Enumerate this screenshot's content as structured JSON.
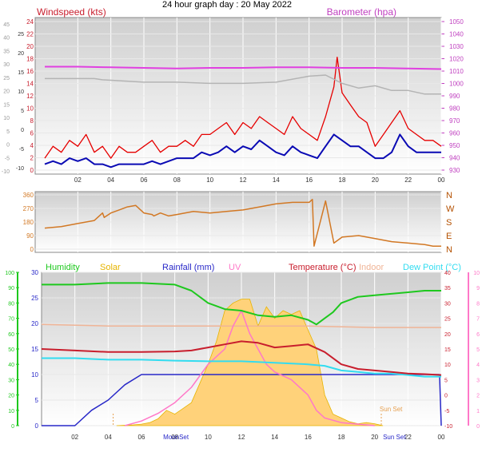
{
  "title": "24 hour graph day : 20 May 2022",
  "x_ticks": [
    "02",
    "04",
    "06",
    "08",
    "10",
    "12",
    "14",
    "16",
    "18",
    "20",
    "22",
    "00"
  ],
  "colors": {
    "wind": "#e60000",
    "gust_avg": "#0a0ab4",
    "baro": "#e040e0",
    "temp_trend": "#b4b4b4",
    "dir": "#d27824",
    "humidity": "#1ec81e",
    "solar": "#e6b400",
    "rain": "#2828c8",
    "uv": "#ff78c8",
    "temp": "#c81e2d",
    "indoor": "#f0b496",
    "dew": "#32dcf0",
    "solar_fill": "#ffd27a"
  },
  "chart_data": [
    {
      "type": "line",
      "name": "wind",
      "title": "Windspeed (kts)",
      "right_title": "Barometer (hpa)",
      "y_left_ticks": [
        "24",
        "22",
        "20",
        "18",
        "16",
        "14",
        "12",
        "10",
        "8",
        "6",
        "4",
        "2",
        "0"
      ],
      "y_left_inner_ticks": [
        "24",
        "22",
        "20",
        "18",
        "16",
        "14",
        "12",
        "10",
        "8",
        "6",
        "4",
        "2",
        "0"
      ],
      "y_far_left_ticks": [
        "45",
        "40",
        "35",
        "30",
        "25",
        "20",
        "15",
        "10",
        "5",
        "0",
        "-5",
        "-10"
      ],
      "y_mid_ticks": [
        "25",
        "20",
        "15",
        "10",
        "5",
        "0",
        "-5",
        "-10"
      ],
      "y_right_ticks": [
        "1050",
        "1040",
        "1030",
        "1020",
        "1010",
        "1000",
        "990",
        "980",
        "970",
        "960",
        "950",
        "940",
        "930"
      ],
      "ylim": [
        0,
        25
      ],
      "baro_lim": [
        925,
        1050
      ],
      "x_hours": [
        0,
        24
      ],
      "series": [
        {
          "key": "windspeed",
          "x": [
            0,
            0.5,
            1,
            1.5,
            2,
            2.5,
            3,
            3.5,
            4,
            4.5,
            5,
            5.5,
            6,
            6.5,
            7,
            7.5,
            8,
            8.5,
            9,
            9.5,
            10,
            10.5,
            11,
            11.5,
            12,
            12.5,
            13,
            13.5,
            14,
            14.5,
            15,
            15.5,
            16,
            16.5,
            17,
            17.5,
            17.7,
            18,
            18.5,
            19,
            19.5,
            20,
            20.5,
            21,
            21.5,
            22,
            22.5,
            23,
            23.5,
            24
          ],
          "y": [
            2,
            4,
            3,
            5,
            4,
            6,
            3,
            4,
            2,
            4,
            3,
            3,
            4,
            5,
            3,
            4,
            4,
            5,
            4,
            6,
            6,
            7,
            8,
            6,
            8,
            7,
            9,
            8,
            7,
            6,
            9,
            7,
            6,
            5,
            9,
            14,
            19,
            13,
            11,
            9,
            8,
            4,
            6,
            8,
            10,
            7,
            6,
            5,
            5,
            4
          ]
        },
        {
          "key": "average",
          "x": [
            0,
            0.5,
            1,
            1.5,
            2,
            2.5,
            3,
            3.5,
            4,
            4.5,
            5,
            5.5,
            6,
            6.5,
            7,
            7.5,
            8,
            8.5,
            9,
            9.5,
            10,
            10.5,
            11,
            11.5,
            12,
            12.5,
            13,
            13.5,
            14,
            14.5,
            15,
            15.5,
            16,
            16.5,
            17,
            17.5,
            18,
            18.5,
            19,
            19.5,
            20,
            20.5,
            21,
            21.5,
            22,
            22.5,
            23,
            23.5,
            24
          ],
          "y": [
            1,
            1.5,
            1,
            2,
            1.5,
            2,
            1,
            1,
            0.5,
            1,
            1,
            1,
            1,
            1.5,
            1,
            1.5,
            2,
            2,
            2,
            3,
            2.5,
            3,
            4,
            3,
            4,
            3.5,
            5,
            4,
            3,
            2.5,
            4,
            3,
            2.5,
            2,
            4,
            6,
            5,
            4,
            4,
            3,
            2,
            2,
            3,
            6,
            4,
            3,
            3,
            3,
            3
          ]
        },
        {
          "key": "barometer",
          "x": [
            0,
            2,
            4,
            6,
            8,
            10,
            12,
            14,
            16,
            18,
            20,
            22,
            24
          ],
          "y": [
            1012,
            1012,
            1011.5,
            1011,
            1010.5,
            1011,
            1011,
            1011.5,
            1011.5,
            1011,
            1011,
            1010.5,
            1010
          ]
        },
        {
          "key": "trend",
          "x": [
            0,
            2,
            3,
            3.5,
            6,
            8,
            10,
            12,
            14,
            16,
            17,
            18,
            19,
            20,
            21,
            22,
            23,
            24
          ],
          "y": [
            1002,
            1002,
            1002,
            1001,
            999,
            999,
            998,
            998,
            999,
            1004,
            1005,
            998,
            994,
            996,
            992,
            992,
            989,
            989
          ]
        }
      ]
    },
    {
      "type": "line",
      "name": "direction",
      "y_left_ticks": [
        "360",
        "270",
        "180",
        "90",
        "0"
      ],
      "y_right_ticks": [
        "N",
        "W",
        "S",
        "E",
        "N"
      ],
      "ylim": [
        0,
        360
      ],
      "series": [
        {
          "key": "direction",
          "x": [
            0,
            1,
            2,
            3,
            3.5,
            3.6,
            4,
            4.5,
            5,
            5.5,
            6,
            6.5,
            6.6,
            7,
            7.5,
            8,
            9,
            10,
            11,
            12,
            13,
            14,
            15,
            16,
            16.2,
            16.3,
            17,
            17.5,
            18,
            19,
            20,
            21,
            22,
            23,
            23.5,
            24
          ],
          "y": [
            140,
            150,
            170,
            190,
            240,
            210,
            240,
            260,
            280,
            290,
            240,
            230,
            220,
            240,
            220,
            230,
            250,
            240,
            250,
            260,
            280,
            300,
            310,
            310,
            330,
            20,
            320,
            40,
            80,
            90,
            70,
            50,
            40,
            30,
            20,
            20
          ]
        }
      ]
    },
    {
      "type": "line",
      "name": "climate",
      "legend": [
        "Humidity",
        "Solar",
        "Rainfall (mm)",
        "UV",
        "Temperature (°C)",
        "Indoor",
        "Dew Point (°C)"
      ],
      "y_hum_ticks": [
        "100",
        "90",
        "80",
        "70",
        "60",
        "50",
        "40",
        "30",
        "20",
        "10",
        "0"
      ],
      "y_rain_ticks": [
        "30",
        "25",
        "20",
        "15",
        "10",
        "5",
        "0"
      ],
      "y_temp_ticks": [
        "40",
        "35",
        "30",
        "25",
        "20",
        "15",
        "10",
        "5",
        "0",
        "-5",
        "-10"
      ],
      "y_uv_ticks": [
        "10",
        "9",
        "8",
        "7",
        "6",
        "5",
        "4",
        "3",
        "2",
        "1",
        "0"
      ],
      "annotations": [
        "MoonSet",
        "MoonSet",
        "Sun Set",
        "Sun Set"
      ],
      "series": [
        {
          "key": "humidity",
          "x": [
            0,
            2,
            4,
            6,
            8,
            9,
            10,
            11,
            12,
            13,
            14,
            15,
            16,
            16.5,
            17,
            17.5,
            18,
            19,
            20,
            21,
            22,
            23,
            24
          ],
          "y": [
            92,
            92,
            93,
            93,
            92,
            88,
            80,
            76,
            75,
            72,
            71,
            72,
            69,
            66,
            70,
            74,
            80,
            84,
            85,
            86,
            87,
            88,
            88
          ]
        },
        {
          "key": "temp",
          "x": [
            0,
            2,
            4,
            6,
            8,
            9,
            10,
            11,
            12,
            13,
            14,
            15,
            16,
            17,
            18,
            19,
            20,
            21,
            22,
            23,
            24
          ],
          "y": [
            15,
            14.5,
            14,
            14,
            14.2,
            14.5,
            15.5,
            16.5,
            17.5,
            17,
            15.5,
            16,
            16.5,
            14,
            10,
            8.5,
            8,
            7.5,
            7,
            6.8,
            6.5
          ]
        },
        {
          "key": "dew",
          "x": [
            0,
            2,
            4,
            6,
            8,
            10,
            12,
            14,
            16,
            17,
            18,
            19,
            20,
            21,
            22,
            23,
            24
          ],
          "y": [
            12,
            12,
            11.5,
            11.5,
            11.2,
            11,
            11,
            10.5,
            10,
            9.5,
            8,
            7.5,
            7,
            7,
            6.5,
            6,
            6
          ]
        },
        {
          "key": "indoor",
          "x": [
            0,
            4,
            8,
            12,
            16,
            20,
            24
          ],
          "y": [
            23,
            22.5,
            22.5,
            22.5,
            22.5,
            22,
            22
          ]
        },
        {
          "key": "rain",
          "x": [
            0,
            1,
            2,
            3,
            4,
            5,
            6,
            7,
            8,
            12,
            16,
            20,
            23.9,
            24
          ],
          "y": [
            0,
            0,
            0,
            3,
            5,
            8,
            10,
            10,
            10,
            10,
            10,
            10,
            10,
            0
          ]
        },
        {
          "key": "solar",
          "x": [
            4.5,
            5,
            5.5,
            6,
            6.5,
            7,
            7.5,
            8,
            8.5,
            9,
            9.5,
            10,
            10.5,
            11,
            11.5,
            12,
            12.5,
            13,
            13.5,
            14,
            14.5,
            15,
            15.5,
            16,
            16.5,
            17,
            17.5,
            18,
            18.5,
            19,
            19.5,
            20,
            20.5
          ],
          "y": [
            0,
            1,
            2,
            4,
            8,
            18,
            40,
            30,
            45,
            60,
            110,
            160,
            220,
            300,
            320,
            330,
            330,
            260,
            310,
            280,
            300,
            290,
            300,
            250,
            200,
            80,
            30,
            20,
            10,
            5,
            8,
            5,
            0
          ]
        },
        {
          "key": "uv",
          "x": [
            5,
            6,
            7,
            8,
            9,
            10,
            11,
            11.5,
            12,
            12.5,
            13,
            13.5,
            14,
            15,
            16,
            16.5,
            17,
            18,
            19,
            20
          ],
          "y": [
            0,
            0.3,
            0.8,
            1.5,
            2.5,
            4,
            5,
            6.5,
            7.5,
            6,
            5,
            4,
            3.5,
            3,
            2,
            1,
            0.5,
            0.2,
            0.1,
            0
          ]
        }
      ]
    }
  ]
}
